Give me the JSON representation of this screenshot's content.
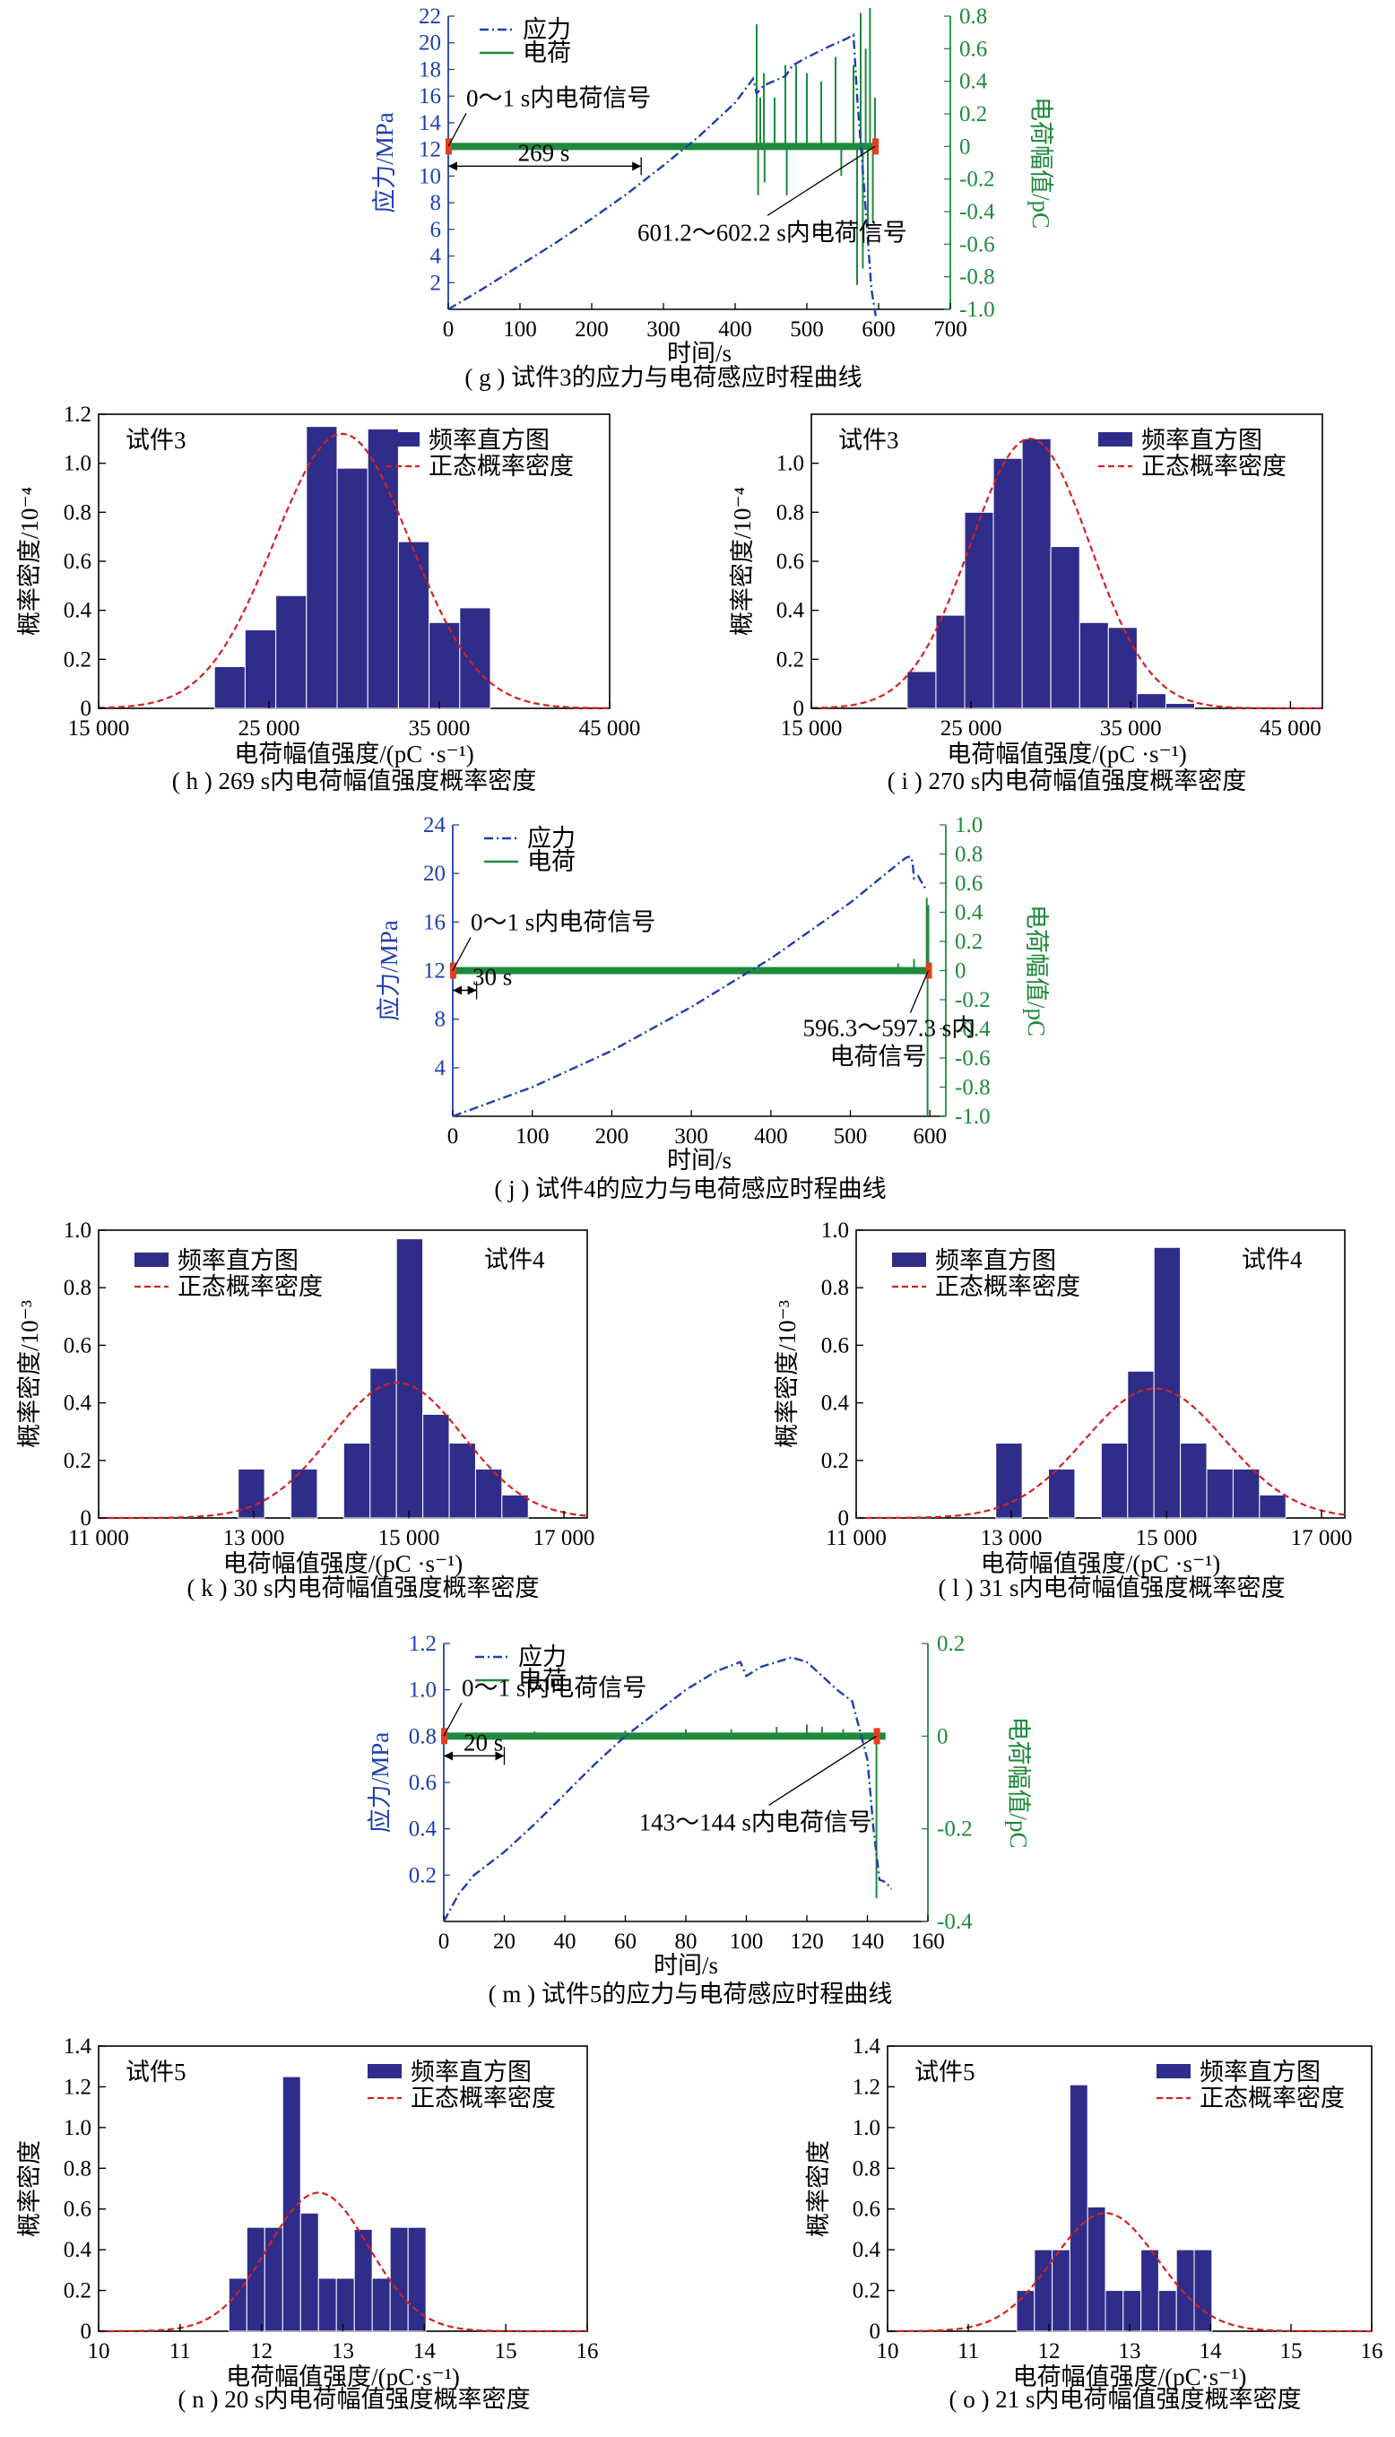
{
  "colors": {
    "stress": "#1f3fae",
    "charge": "#1e8a3c",
    "bar_fill": "#2e2d8a",
    "normal": "#d62020",
    "marker": "#e04020"
  },
  "charts": [
    {
      "kind": "timeseries",
      "caption": "( g ) 试件3的应力与电荷感应时程曲线",
      "xlabel": "时间/s",
      "ylabel_left": "应力/MPa",
      "ylabel_right": "电荷幅值/pC",
      "legend": [
        "应力",
        "电荷"
      ],
      "annotations": [
        "0～1 s内电荷信号",
        "269 s",
        "601.2～602.2 s内电荷信号"
      ]
    },
    {
      "kind": "histogram",
      "caption": "( h ) 269 s内电荷幅值强度概率密度",
      "specimen": "试件3",
      "xlabel": "电荷幅值强度/(pC ·s⁻¹)",
      "ylabel": "概率密度/10⁻⁴",
      "legend": [
        "频率直方图",
        "正态概率密度"
      ]
    },
    {
      "kind": "histogram",
      "caption": "( i ) 270 s内电荷幅值强度概率密度",
      "specimen": "试件3",
      "xlabel": "电荷幅值强度/(pC ·s⁻¹)",
      "ylabel": "概率密度/10⁻⁴",
      "legend": [
        "频率直方图",
        "正态概率密度"
      ]
    },
    {
      "kind": "timeseries",
      "caption": "( j ) 试件4的应力与电荷感应时程曲线",
      "xlabel": "时间/s",
      "ylabel_left": "应力/MPa",
      "ylabel_right": "电荷幅值/pC",
      "legend": [
        "应力",
        "电荷"
      ],
      "annotations": [
        "0～1 s内电荷信号",
        "30 s",
        "596.3～597.3 s内",
        "电荷信号"
      ]
    },
    {
      "kind": "histogram",
      "caption": "( k ) 30 s内电荷幅值强度概率密度",
      "specimen": "试件4",
      "xlabel": "电荷幅值强度/(pC ·s⁻¹)",
      "ylabel": "概率密度/10⁻³",
      "legend": [
        "频率直方图",
        "正态概率密度"
      ]
    },
    {
      "kind": "histogram",
      "caption": "( l ) 31 s内电荷幅值强度概率密度",
      "specimen": "试件4",
      "xlabel": "电荷幅值强度/(pC ·s⁻¹)",
      "ylabel": "概率密度/10⁻³",
      "legend": [
        "频率直方图",
        "正态概率密度"
      ]
    },
    {
      "kind": "timeseries",
      "caption": "( m ) 试件5的应力与电荷感应时程曲线",
      "xlabel": "时间/s",
      "ylabel_left": "应力/MPa",
      "ylabel_right": "电荷幅值/pC",
      "legend": [
        "应力",
        "电荷"
      ],
      "annotations": [
        "0～1 s内电荷信号",
        "20 s",
        "143～144 s内电荷信号"
      ]
    },
    {
      "kind": "histogram",
      "caption": "( n ) 20 s内电荷幅值强度概率密度",
      "specimen": "试件5",
      "xlabel": "电荷幅值强度/(pC·s⁻¹)",
      "ylabel": "概率密度",
      "legend": [
        "频率直方图",
        "正态概率密度"
      ]
    },
    {
      "kind": "histogram",
      "caption": "( o ) 21 s内电荷幅值强度概率密度",
      "specimen": "试件5",
      "xlabel": "电荷幅值强度/(pC·s⁻¹)",
      "ylabel": "概率密度",
      "legend": [
        "频率直方图",
        "正态概率密度"
      ]
    }
  ],
  "chart_data": [
    {
      "type": "line",
      "x_range": [
        0,
        700
      ],
      "x_ticks": [
        0,
        100,
        200,
        300,
        400,
        500,
        600,
        700
      ],
      "y_left_range": [
        0,
        22
      ],
      "y_left_ticks": [
        2,
        4,
        6,
        8,
        10,
        12,
        14,
        16,
        18,
        20,
        22
      ],
      "y_right_range": [
        -1.0,
        0.8
      ],
      "y_right_ticks": [
        -1.0,
        -0.8,
        -0.6,
        -0.4,
        -0.2,
        0,
        0.2,
        0.4,
        0.6,
        0.8
      ],
      "series": [
        {
          "name": "应力",
          "axis": "left",
          "style": "dash-dot",
          "points": [
            [
              0,
              0
            ],
            [
              50,
              1.6
            ],
            [
              100,
              3.3
            ],
            [
              150,
              5.0
            ],
            [
              200,
              6.8
            ],
            [
              250,
              8.7
            ],
            [
              300,
              10.8
            ],
            [
              350,
              13.0
            ],
            [
              400,
              15.5
            ],
            [
              425,
              17.3
            ],
            [
              430,
              16.2
            ],
            [
              440,
              16.8
            ],
            [
              470,
              17.5
            ],
            [
              480,
              18.3
            ],
            [
              500,
              18.9
            ],
            [
              530,
              19.7
            ],
            [
              555,
              20.3
            ],
            [
              565,
              20.6
            ],
            [
              570,
              16
            ],
            [
              580,
              9
            ],
            [
              590,
              1.5
            ],
            [
              596,
              -0.5
            ]
          ]
        },
        {
          "name": "电荷",
          "axis": "right",
          "baseline": 0,
          "spikes": [
            [
              430,
              0.75
            ],
            [
              432,
              -0.3
            ],
            [
              435,
              0.3
            ],
            [
              440,
              0.45
            ],
            [
              441,
              -0.22
            ],
            [
              455,
              0.3
            ],
            [
              470,
              0.5
            ],
            [
              472,
              -0.3
            ],
            [
              485,
              0.5
            ],
            [
              500,
              0.45
            ],
            [
              520,
              0.4
            ],
            [
              540,
              0.55
            ],
            [
              548,
              -0.18
            ],
            [
              565,
              0.5
            ],
            [
              570,
              -0.85
            ],
            [
              575,
              0.82
            ],
            [
              578,
              -0.75
            ],
            [
              582,
              0.6
            ],
            [
              585,
              -0.5
            ],
            [
              588,
              0.85
            ],
            [
              592,
              -0.45
            ],
            [
              595,
              0.3
            ]
          ]
        }
      ]
    },
    {
      "type": "bar",
      "x_range": [
        15000,
        45000
      ],
      "x_ticks": [
        15000,
        25000,
        35000,
        45000
      ],
      "y_range": [
        0,
        1.2
      ],
      "y_ticks": [
        0,
        0.2,
        0.4,
        0.6,
        0.8,
        1.0,
        1.2
      ],
      "bin_width": 1800,
      "bins": [
        [
          21800,
          0.17
        ],
        [
          23600,
          0.32
        ],
        [
          25400,
          0.46
        ],
        [
          27200,
          1.15
        ],
        [
          29000,
          0.98
        ],
        [
          30800,
          1.14
        ],
        [
          32600,
          0.68
        ],
        [
          34400,
          0.35
        ],
        [
          36200,
          0.41
        ],
        [
          38000,
          0
        ]
      ],
      "normal_fit": {
        "mean": 29300,
        "peak": 1.12,
        "sd": 4000
      }
    },
    {
      "type": "bar",
      "x_range": [
        15000,
        47000
      ],
      "x_ticks": [
        15000,
        25000,
        35000,
        45000
      ],
      "y_range": [
        0,
        1.2
      ],
      "y_ticks": [
        0,
        0.2,
        0.4,
        0.6,
        0.8,
        1.0
      ],
      "bin_width": 1800,
      "bins": [
        [
          21000,
          0.15
        ],
        [
          22800,
          0.38
        ],
        [
          24600,
          0.8
        ],
        [
          26400,
          1.02
        ],
        [
          28200,
          1.1
        ],
        [
          30000,
          0.66
        ],
        [
          31800,
          0.35
        ],
        [
          33600,
          0.33
        ],
        [
          35400,
          0.06
        ],
        [
          37200,
          0.02
        ]
      ],
      "normal_fit": {
        "mean": 28700,
        "peak": 1.1,
        "sd": 3750
      }
    },
    {
      "type": "line",
      "x_range": [
        0,
        620
      ],
      "x_ticks": [
        0,
        100,
        200,
        300,
        400,
        500,
        600
      ],
      "y_left_range": [
        0,
        24
      ],
      "y_left_ticks": [
        4,
        8,
        12,
        16,
        20,
        24
      ],
      "y_right_range": [
        -1.0,
        1.0
      ],
      "y_right_ticks": [
        -1.0,
        -0.8,
        -0.6,
        -0.4,
        -0.2,
        0,
        0.2,
        0.4,
        0.6,
        0.8,
        1.0
      ],
      "series": [
        {
          "name": "应力",
          "axis": "left",
          "style": "dash-dot",
          "points": [
            [
              0,
              0
            ],
            [
              100,
              2.4
            ],
            [
              200,
              5.4
            ],
            [
              300,
              9.0
            ],
            [
              400,
              13.0
            ],
            [
              500,
              17.6
            ],
            [
              560,
              20.8
            ],
            [
              570,
              21.3
            ],
            [
              575,
              21.4
            ],
            [
              578,
              21.0
            ],
            [
              580,
              19.6
            ],
            [
              585,
              19.8
            ],
            [
              592,
              19.0
            ],
            [
              596,
              18.6
            ]
          ]
        },
        {
          "name": "电荷",
          "axis": "right",
          "baseline": 0,
          "spikes": [
            [
              560,
              0.05
            ],
            [
              580,
              0.08
            ],
            [
              596,
              0.5
            ],
            [
              597,
              -1.0
            ],
            [
              598,
              0.45
            ]
          ]
        }
      ]
    },
    {
      "type": "bar",
      "x_range": [
        11000,
        17300
      ],
      "x_ticks": [
        11000,
        13000,
        15000,
        17000
      ],
      "y_range": [
        0,
        1.0
      ],
      "y_ticks": [
        0,
        0.2,
        0.4,
        0.6,
        0.8,
        1.0
      ],
      "bin_width": 340,
      "bins": [
        [
          12800,
          0.17
        ],
        [
          13480,
          0.17
        ],
        [
          14160,
          0.26
        ],
        [
          14500,
          0.52
        ],
        [
          14840,
          0.97
        ],
        [
          15180,
          0.36
        ],
        [
          15520,
          0.26
        ],
        [
          15860,
          0.17
        ],
        [
          16200,
          0.08
        ]
      ],
      "normal_fit": {
        "mean": 14850,
        "peak": 0.47,
        "sd": 850
      }
    },
    {
      "type": "bar",
      "x_range": [
        11000,
        17300
      ],
      "x_ticks": [
        11000,
        13000,
        15000,
        17000
      ],
      "y_range": [
        0,
        1.0
      ],
      "y_ticks": [
        0,
        0.2,
        0.4,
        0.6,
        0.8,
        1.0
      ],
      "bin_width": 340,
      "bins": [
        [
          12800,
          0.26
        ],
        [
          13480,
          0.17
        ],
        [
          14160,
          0.26
        ],
        [
          14500,
          0.51
        ],
        [
          14840,
          0.94
        ],
        [
          15180,
          0.26
        ],
        [
          15520,
          0.17
        ],
        [
          15860,
          0.17
        ],
        [
          16200,
          0.08
        ]
      ],
      "normal_fit": {
        "mean": 14850,
        "peak": 0.45,
        "sd": 900
      }
    },
    {
      "type": "line",
      "x_range": [
        0,
        160
      ],
      "x_ticks": [
        0,
        20,
        40,
        60,
        80,
        100,
        120,
        140,
        160
      ],
      "y_left_range": [
        0,
        1.2
      ],
      "y_left_ticks": [
        0.2,
        0.4,
        0.6,
        0.8,
        1.0,
        1.2
      ],
      "y_right_range": [
        -0.4,
        0.2
      ],
      "y_right_ticks": [
        -0.4,
        -0.2,
        0,
        0.2
      ],
      "series": [
        {
          "name": "应力",
          "axis": "left",
          "style": "dash-dot",
          "points": [
            [
              0,
              0
            ],
            [
              5,
              0.12
            ],
            [
              10,
              0.2
            ],
            [
              20,
              0.3
            ],
            [
              30,
              0.42
            ],
            [
              40,
              0.55
            ],
            [
              50,
              0.68
            ],
            [
              60,
              0.8
            ],
            [
              70,
              0.9
            ],
            [
              80,
              1.0
            ],
            [
              90,
              1.08
            ],
            [
              98,
              1.12
            ],
            [
              100,
              1.06
            ],
            [
              105,
              1.1
            ],
            [
              115,
              1.14
            ],
            [
              120,
              1.12
            ],
            [
              130,
              1.0
            ],
            [
              135,
              0.95
            ],
            [
              140,
              0.7
            ],
            [
              142,
              0.4
            ],
            [
              144,
              0.18
            ],
            [
              146,
              0.17
            ],
            [
              148,
              0.14
            ]
          ]
        },
        {
          "name": "电荷",
          "axis": "right",
          "baseline": 0,
          "spikes": [
            [
              30,
              0.01
            ],
            [
              60,
              0.012
            ],
            [
              80,
              0.015
            ],
            [
              95,
              0.015
            ],
            [
              110,
              0.02
            ],
            [
              120,
              0.025
            ],
            [
              125,
              0.02
            ],
            [
              132,
              0.015
            ],
            [
              143,
              -0.35
            ]
          ]
        }
      ]
    },
    {
      "type": "bar",
      "x_range": [
        10,
        16
      ],
      "x_ticks": [
        10,
        11,
        12,
        13,
        14,
        15,
        16
      ],
      "y_range": [
        0,
        1.4
      ],
      "y_ticks": [
        0,
        0.2,
        0.4,
        0.6,
        0.8,
        1.0,
        1.2,
        1.4
      ],
      "bin_width": 0.22,
      "bins": [
        [
          11.6,
          0.26
        ],
        [
          11.82,
          0.51
        ],
        [
          12.04,
          0.51
        ],
        [
          12.26,
          1.25
        ],
        [
          12.48,
          0.58
        ],
        [
          12.7,
          0.26
        ],
        [
          12.92,
          0.26
        ],
        [
          13.14,
          0.5
        ],
        [
          13.36,
          0.26
        ],
        [
          13.58,
          0.51
        ],
        [
          13.8,
          0.51
        ]
      ],
      "normal_fit": {
        "mean": 12.7,
        "peak": 0.68,
        "sd": 0.62
      }
    },
    {
      "type": "bar",
      "x_range": [
        10,
        16
      ],
      "x_ticks": [
        10,
        11,
        12,
        13,
        14,
        15,
        16
      ],
      "y_range": [
        0,
        1.4
      ],
      "y_ticks": [
        0,
        0.2,
        0.4,
        0.6,
        0.8,
        1.0,
        1.2,
        1.4
      ],
      "bin_width": 0.22,
      "bins": [
        [
          11.6,
          0.2
        ],
        [
          11.82,
          0.4
        ],
        [
          12.04,
          0.4
        ],
        [
          12.26,
          1.21
        ],
        [
          12.48,
          0.61
        ],
        [
          12.7,
          0.2
        ],
        [
          12.92,
          0.2
        ],
        [
          13.14,
          0.4
        ],
        [
          13.36,
          0.2
        ],
        [
          13.58,
          0.4
        ],
        [
          13.8,
          0.4
        ]
      ],
      "normal_fit": {
        "mean": 12.7,
        "peak": 0.58,
        "sd": 0.65
      }
    }
  ]
}
